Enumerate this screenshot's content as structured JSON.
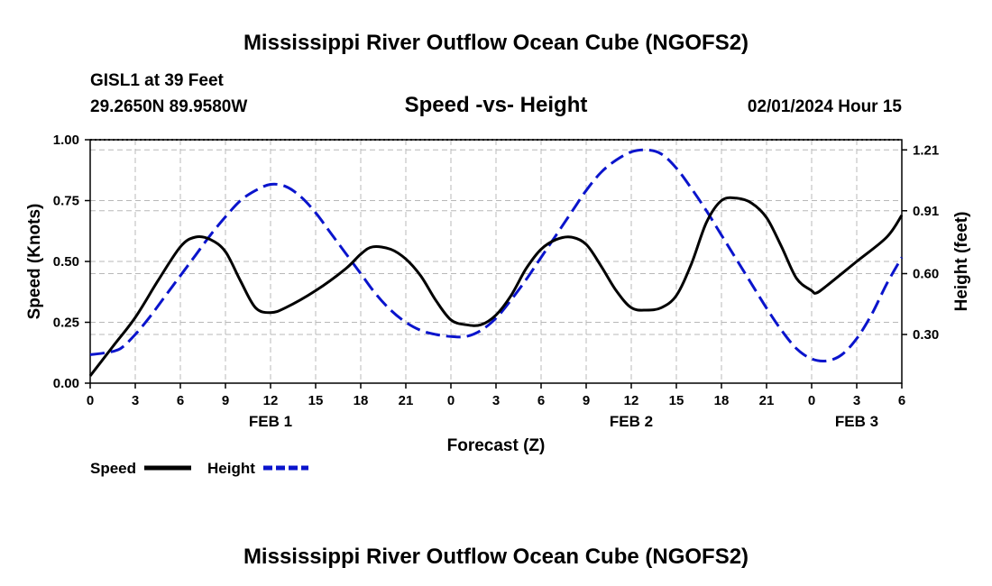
{
  "header": {
    "title": "Mississippi River Outflow Ocean Cube (NGOFS2)",
    "footer_title": "Mississippi River Outflow Ocean Cube (NGOFS2)",
    "station": "GISL1 at 39 Feet",
    "location": "29.2650N  89.9580W",
    "datetime": "02/01/2024 Hour 15"
  },
  "chart_data": {
    "type": "line",
    "title": "Speed -vs- Height",
    "xlabel": "Forecast (Z)",
    "ylabel": "Speed (Knots)",
    "ylabel_right": "Height (feet)",
    "xlim": [
      0,
      54
    ],
    "ylim": [
      0,
      1.0
    ],
    "ylim_right": [
      0.06,
      1.26
    ],
    "grid": true,
    "x_ticks": [
      0,
      3,
      6,
      9,
      12,
      15,
      18,
      21,
      24,
      27,
      30,
      33,
      36,
      39,
      42,
      45,
      48,
      51,
      54
    ],
    "x_tick_labels": [
      "0",
      "3",
      "6",
      "9",
      "12",
      "15",
      "18",
      "21",
      "0",
      "3",
      "6",
      "9",
      "12",
      "15",
      "18",
      "21",
      "0",
      "3",
      "6"
    ],
    "y_ticks": [
      0,
      0.25,
      0.5,
      0.75,
      1.0
    ],
    "y_tick_labels": [
      "0.00",
      "0.25",
      "0.50",
      "0.75",
      "1.00"
    ],
    "y_ticks_right": [
      0.3,
      0.6,
      0.91,
      1.21
    ],
    "y_tick_labels_right": [
      "0.30",
      "0.60",
      "0.91",
      "1.21"
    ],
    "day_labels": [
      {
        "x": 12,
        "label": "FEB 1"
      },
      {
        "x": 36,
        "label": "FEB 2"
      },
      {
        "x": 51,
        "label": "FEB 3"
      }
    ],
    "series": [
      {
        "name": "Speed",
        "axis": "left",
        "color": "#000000",
        "dash": "solid",
        "x": [
          0,
          1.5,
          3,
          4.5,
          6,
          7,
          8,
          9,
          10,
          11,
          12,
          13,
          15,
          17,
          18,
          18.8,
          20,
          21,
          22,
          23,
          24,
          25,
          26,
          27,
          28,
          29,
          30,
          31,
          32,
          33,
          34,
          35,
          36,
          37,
          38,
          39,
          40,
          41,
          42,
          43,
          44,
          45,
          46,
          47,
          48,
          48.3,
          49,
          51,
          53,
          54
        ],
        "values": [
          0.03,
          0.15,
          0.27,
          0.42,
          0.56,
          0.6,
          0.59,
          0.54,
          0.42,
          0.31,
          0.29,
          0.31,
          0.38,
          0.47,
          0.53,
          0.56,
          0.55,
          0.51,
          0.44,
          0.34,
          0.26,
          0.24,
          0.24,
          0.28,
          0.36,
          0.47,
          0.55,
          0.59,
          0.6,
          0.57,
          0.48,
          0.38,
          0.31,
          0.3,
          0.31,
          0.36,
          0.49,
          0.66,
          0.75,
          0.76,
          0.74,
          0.68,
          0.56,
          0.43,
          0.38,
          0.37,
          0.4,
          0.5,
          0.6,
          0.69
        ]
      },
      {
        "name": "Height",
        "axis": "right",
        "color": "#0a14cc",
        "dash": "dashed",
        "x": [
          0,
          1,
          2,
          3,
          4,
          5,
          6,
          7,
          8,
          9,
          10,
          11,
          12,
          13,
          14,
          15,
          16,
          17,
          18,
          19,
          20,
          21,
          22,
          23,
          24,
          25,
          26,
          27,
          28,
          29,
          30,
          31,
          32,
          33,
          34,
          35,
          36,
          37,
          38,
          39,
          40,
          41,
          42,
          43,
          44,
          45,
          46,
          47,
          48,
          49,
          50,
          51,
          52,
          53,
          54
        ],
        "values": [
          0.2,
          0.21,
          0.23,
          0.3,
          0.39,
          0.49,
          0.59,
          0.69,
          0.79,
          0.88,
          0.96,
          1.01,
          1.04,
          1.03,
          0.98,
          0.9,
          0.8,
          0.7,
          0.6,
          0.5,
          0.42,
          0.36,
          0.32,
          0.3,
          0.29,
          0.29,
          0.32,
          0.38,
          0.47,
          0.57,
          0.68,
          0.79,
          0.9,
          1.01,
          1.1,
          1.16,
          1.2,
          1.21,
          1.19,
          1.12,
          1.02,
          0.91,
          0.79,
          0.67,
          0.55,
          0.43,
          0.32,
          0.23,
          0.18,
          0.17,
          0.2,
          0.28,
          0.4,
          0.55,
          0.68
        ]
      }
    ]
  }
}
